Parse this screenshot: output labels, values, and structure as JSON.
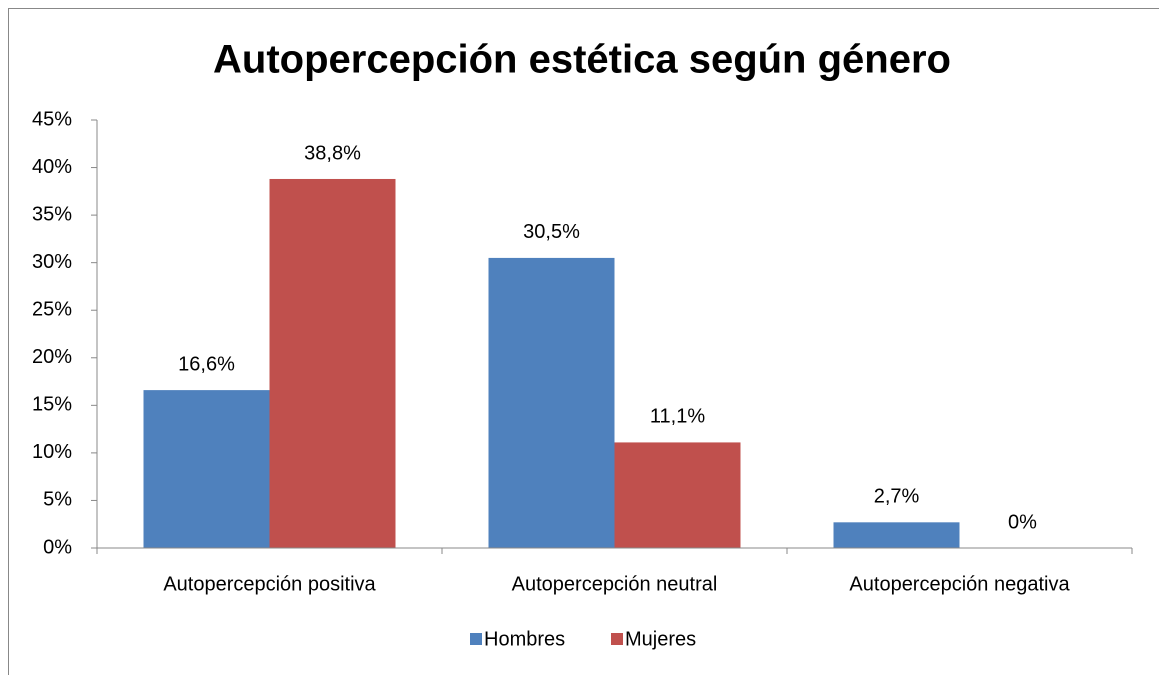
{
  "chart_data": {
    "type": "bar",
    "title": "Autopercepción estética según género",
    "categories": [
      "Autopercepción positiva",
      "Autopercepción neutral",
      "Autopercepción negativa"
    ],
    "series": [
      {
        "name": "Hombres",
        "color": "#4f81bd",
        "values": [
          16.6,
          30.5,
          2.7
        ],
        "value_labels": [
          "16,6%",
          "30,5%",
          "2,7%"
        ]
      },
      {
        "name": "Mujeres",
        "color": "#c0504d",
        "values": [
          38.8,
          11.1,
          0
        ],
        "value_labels": [
          "38,8%",
          "11,1%",
          "0%"
        ]
      }
    ],
    "ylim": [
      0,
      45
    ],
    "yticks": [
      {
        "value": 0,
        "label": "0%"
      },
      {
        "value": 5,
        "label": "5%"
      },
      {
        "value": 10,
        "label": "10%"
      },
      {
        "value": 15,
        "label": "15%"
      },
      {
        "value": 20,
        "label": "20%"
      },
      {
        "value": 25,
        "label": "25%"
      },
      {
        "value": 30,
        "label": "30%"
      },
      {
        "value": 35,
        "label": "35%"
      },
      {
        "value": 40,
        "label": "40%"
      },
      {
        "value": 45,
        "label": "45%"
      }
    ],
    "grid": false,
    "legend": "bottom"
  }
}
